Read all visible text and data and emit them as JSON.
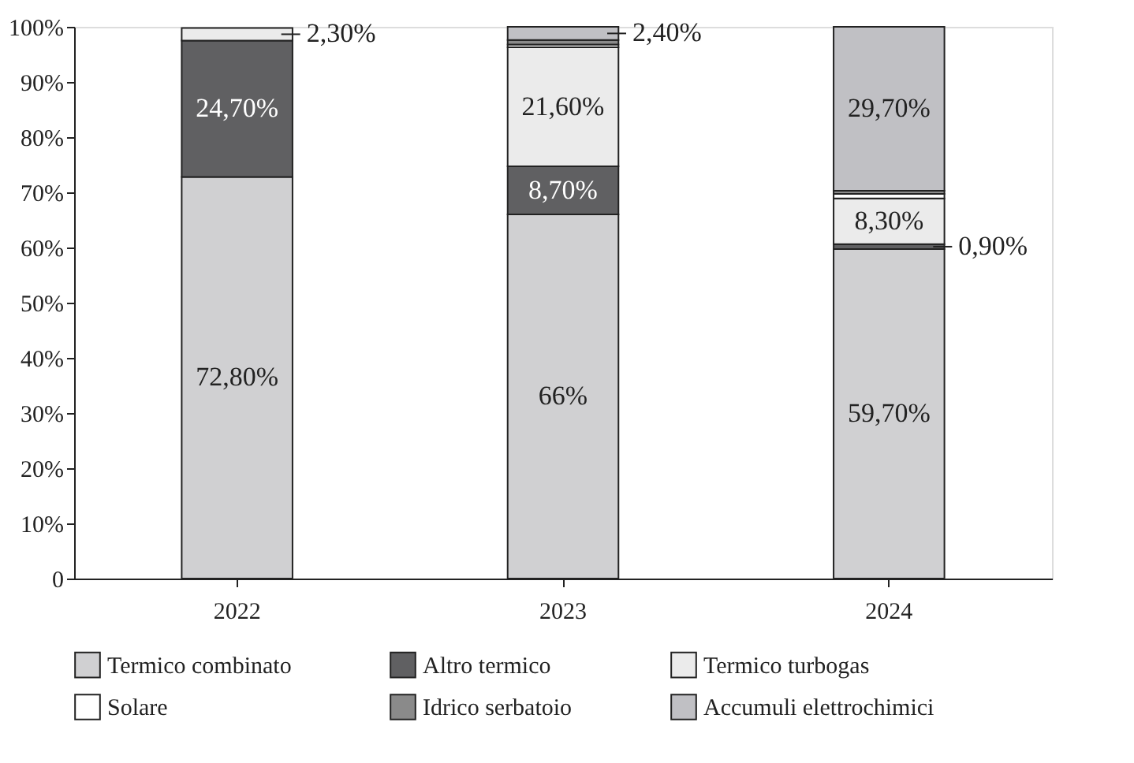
{
  "chart_data": {
    "type": "bar",
    "stacked": true,
    "categories": [
      "2022",
      "2023",
      "2024"
    ],
    "ylim": [
      0,
      100
    ],
    "yticks": [
      {
        "value": 0,
        "label": "0"
      },
      {
        "value": 10,
        "label": "10%"
      },
      {
        "value": 20,
        "label": "20%"
      },
      {
        "value": 30,
        "label": "30%"
      },
      {
        "value": 40,
        "label": "40%"
      },
      {
        "value": 50,
        "label": "50%"
      },
      {
        "value": 60,
        "label": "60%"
      },
      {
        "value": 70,
        "label": "70%"
      },
      {
        "value": 80,
        "label": "80%"
      },
      {
        "value": 90,
        "label": "90%"
      },
      {
        "value": 100,
        "label": "100%"
      }
    ],
    "grid": false,
    "legend": "bottom",
    "series": [
      {
        "name": "Termico combinato",
        "color": "#d0d0d2",
        "values": [
          72.8,
          66,
          59.7
        ],
        "value_labels": [
          "72,80%",
          "66%",
          "59,70%"
        ]
      },
      {
        "name": "Altro termico",
        "color": "#606062",
        "values": [
          24.7,
          8.7,
          0.9
        ],
        "value_labels": [
          "24,70%",
          "8,70%",
          "0,90%"
        ]
      },
      {
        "name": "Termico turbogas",
        "color": "#ebebeb",
        "values": [
          2.3,
          21.6,
          8.3
        ],
        "value_labels": [
          "2,30%",
          "21,60%",
          "8,30%"
        ]
      },
      {
        "name": "Solare",
        "color": "#ffffff",
        "values": [
          null,
          0.5,
          0.8
        ],
        "value_labels": [
          null,
          null,
          null
        ]
      },
      {
        "name": "Idrico serbatoio",
        "color": "#8a8a8a",
        "values": [
          null,
          0.8,
          0.6
        ],
        "value_labels": [
          null,
          null,
          null
        ]
      },
      {
        "name": "Accumuli elettrochimici",
        "color": "#c0c0c4",
        "values": [
          null,
          2.4,
          29.7
        ],
        "value_labels": [
          null,
          "2,40%",
          "29,70%"
        ]
      }
    ]
  }
}
